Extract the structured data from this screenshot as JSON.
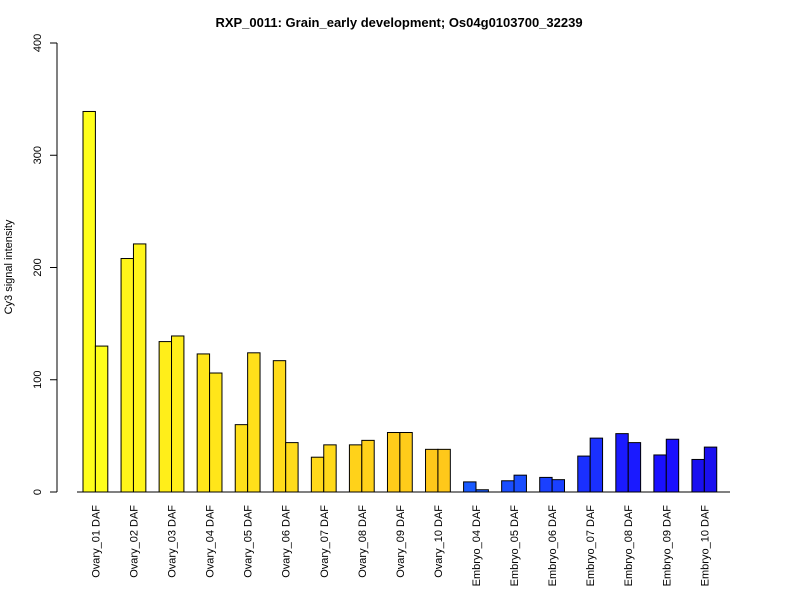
{
  "chart_data": {
    "type": "bar",
    "title": "RXP_0011: Grain_early development; Os04g0103700_32239",
    "xlabel": "",
    "ylabel": "Cy3 signal intensity",
    "ylim": [
      0,
      400
    ],
    "yticks": [
      0,
      100,
      200,
      300,
      400
    ],
    "grid": false,
    "categories": [
      "Ovary_01 DAF",
      "Ovary_02 DAF",
      "Ovary_03 DAF",
      "Ovary_04 DAF",
      "Ovary_05 DAF",
      "Ovary_06 DAF",
      "Ovary_07 DAF",
      "Ovary_08 DAF",
      "Ovary_09 DAF",
      "Ovary_10 DAF",
      "Embryo_04 DAF",
      "Embryo_05 DAF",
      "Embryo_06 DAF",
      "Embryo_07 DAF",
      "Embryo_08 DAF",
      "Embryo_09 DAF",
      "Embryo_10 DAF"
    ],
    "series": [
      {
        "values": [
          339,
          208,
          134,
          123,
          60,
          117,
          31,
          42,
          53,
          38,
          9,
          10,
          13,
          32,
          52,
          33,
          29
        ]
      },
      {
        "values": [
          130,
          221,
          139,
          106,
          124,
          44,
          42,
          46,
          53,
          38,
          2,
          15,
          11,
          48,
          44,
          47,
          40
        ]
      }
    ],
    "category_colors": [
      "#FFFF1A",
      "#FFF51A",
      "#FFEE1A",
      "#FFE61A",
      "#FFE01A",
      "#FFDB1A",
      "#FFD91A",
      "#FFD21A",
      "#FFCC1A",
      "#FFC81A",
      "#1A5AFF",
      "#1A4EFF",
      "#1A40FF",
      "#1A30FF",
      "#1A1AFF",
      "#1A10FF",
      "#1A10F0"
    ]
  }
}
